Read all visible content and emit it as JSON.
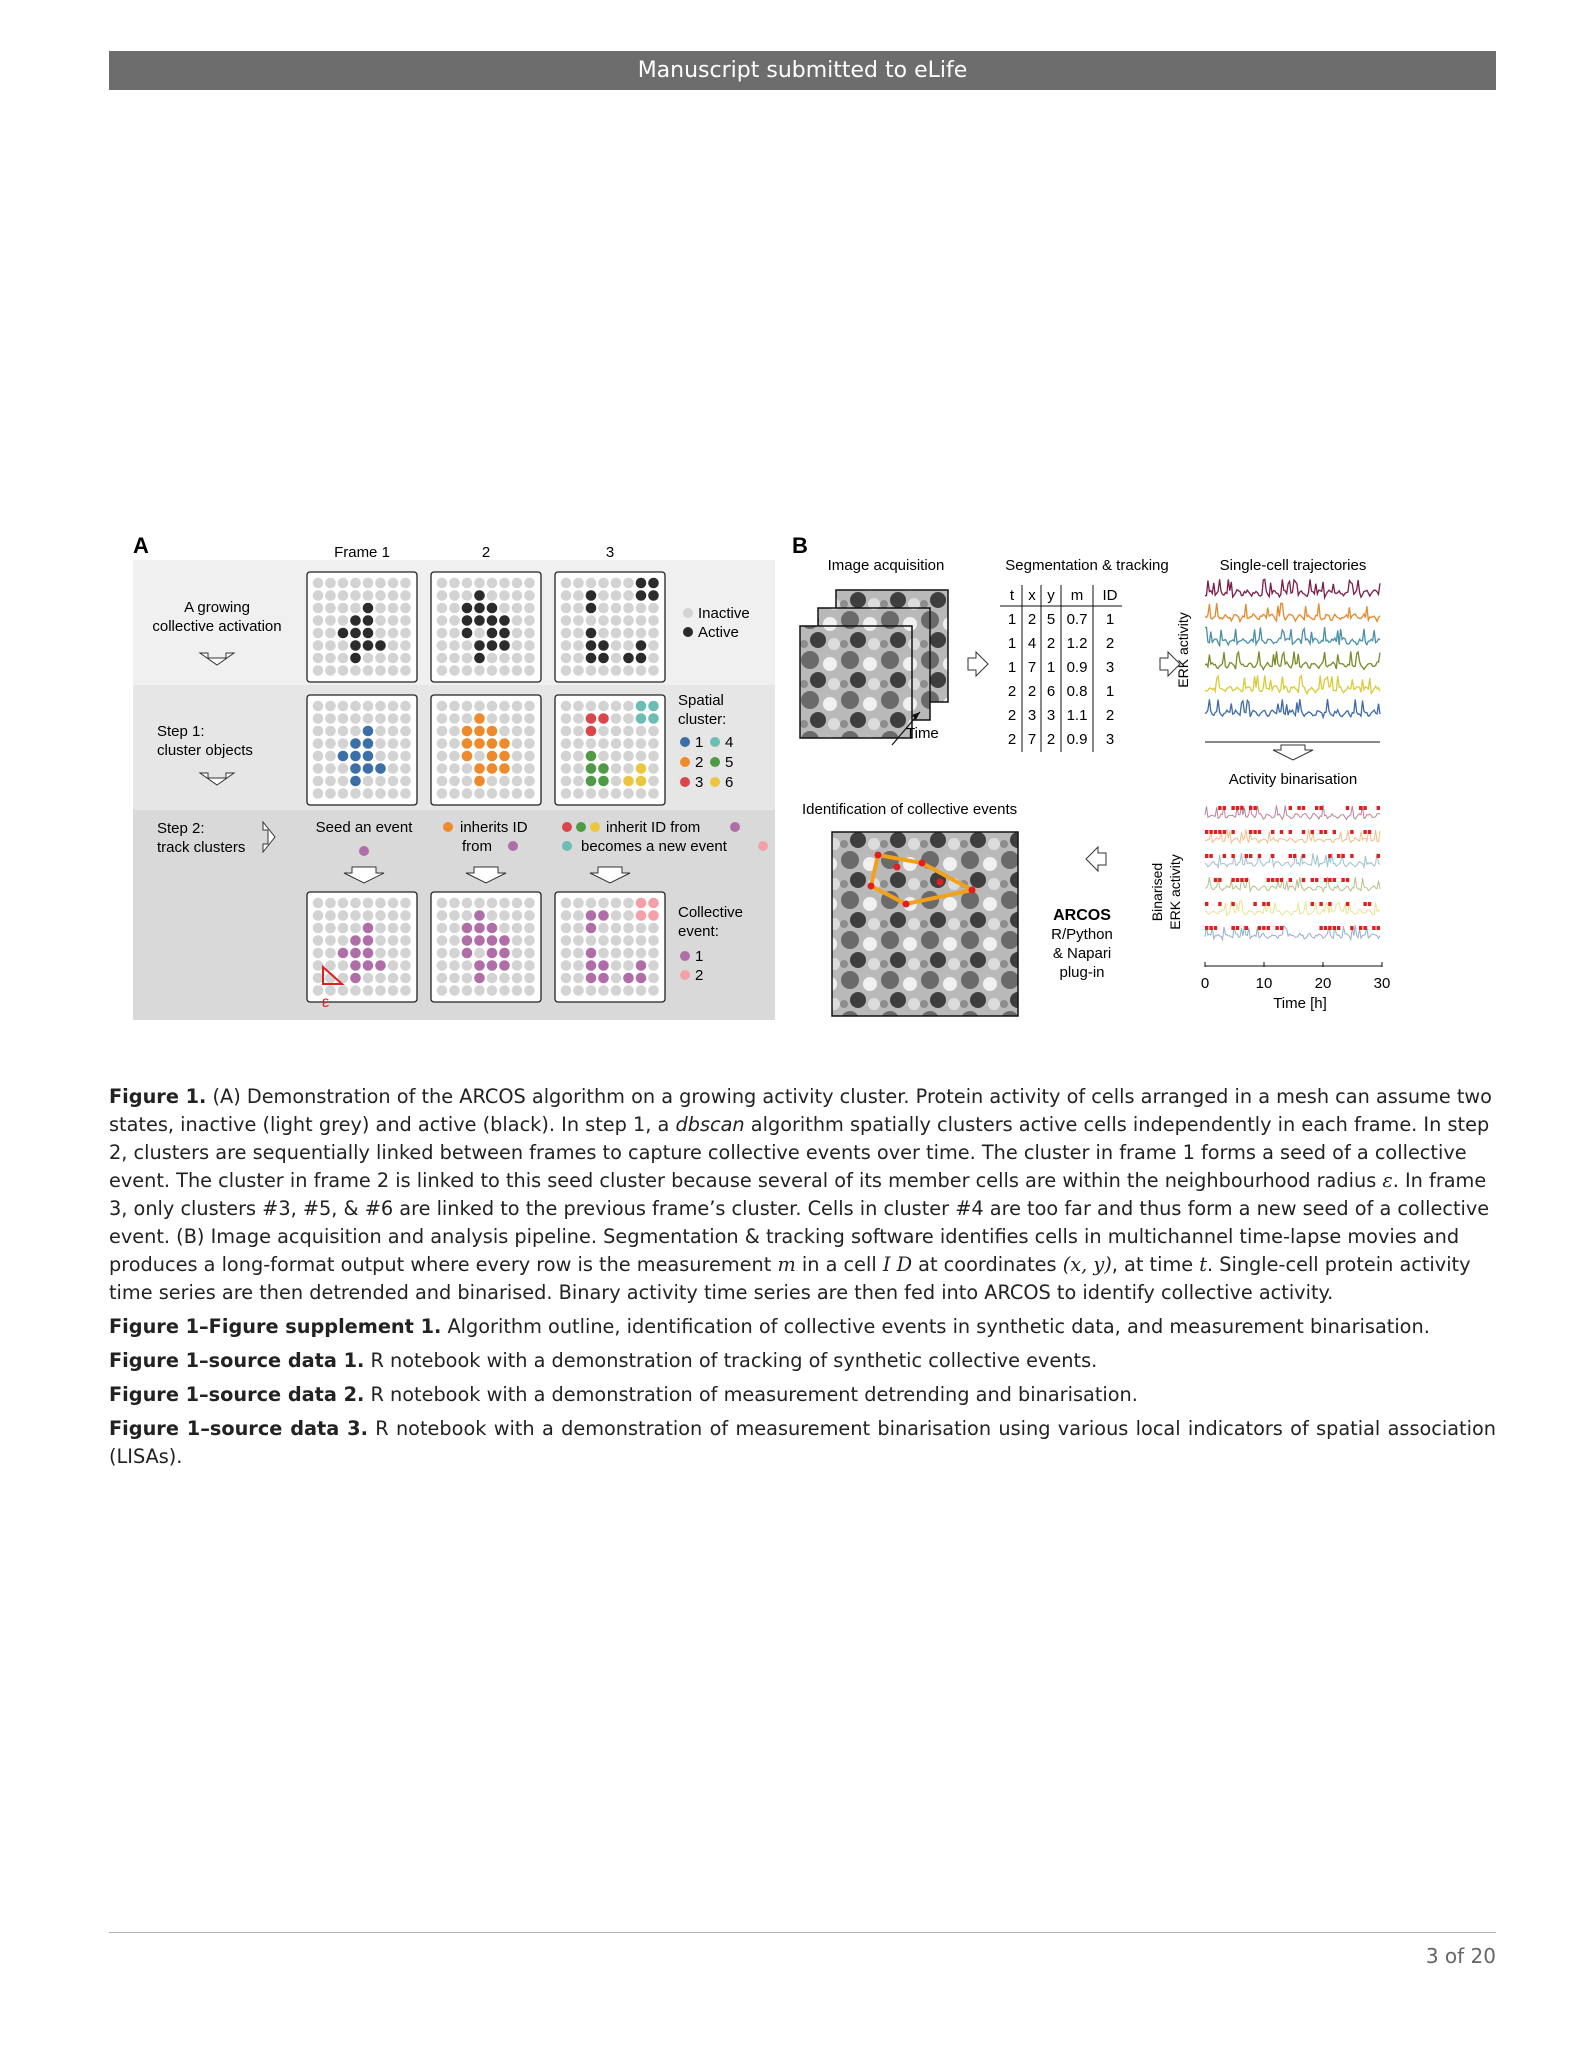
{
  "header": {
    "text": "Manuscript submitted to eLife"
  },
  "figure": {
    "panel_a": {
      "label": "A",
      "frame_titles": [
        "Frame 1",
        "2",
        "3"
      ],
      "row1_label": [
        "A growing",
        "collective activation"
      ],
      "legend_states": [
        "Inactive",
        "Active"
      ],
      "step1_label": [
        "Step 1:",
        "cluster objects"
      ],
      "spatial_cluster_title": [
        "Spatial",
        "cluster:"
      ],
      "cluster_ids": [
        "1",
        "4",
        "2",
        "5",
        "3",
        "6"
      ],
      "step2_label": [
        "Step 2:",
        "track clusters"
      ],
      "seed_text": "Seed an event",
      "inherits_text": [
        "inherits ID",
        "from"
      ],
      "inherit_from_text": "inherit ID from",
      "new_event_text": "becomes a new event",
      "collective_event_title": [
        "Collective",
        "event:"
      ],
      "event_ids": [
        "1",
        "2"
      ],
      "epsilon": "ε",
      "colors": {
        "inactive": "#d3d3d3",
        "active": "#2b2b2b",
        "c1": "#3c6ea8",
        "c2": "#ee8a2b",
        "c3": "#d9474c",
        "c4": "#6cbeb4",
        "c5": "#4f9a45",
        "c6": "#ecc63e",
        "e1": "#b06ea8",
        "e2": "#f4a0a8"
      }
    },
    "panel_b": {
      "label": "B",
      "image_acquisition": "Image acquisition",
      "time_label": "Time",
      "segmentation_title": "Segmentation & tracking",
      "table": {
        "headers": [
          "t",
          "x",
          "y",
          "m",
          "ID"
        ],
        "rows": [
          [
            "1",
            "2",
            "5",
            "0.7",
            "1"
          ],
          [
            "1",
            "4",
            "2",
            "1.2",
            "2"
          ],
          [
            "1",
            "7",
            "1",
            "0.9",
            "3"
          ],
          [
            "2",
            "2",
            "6",
            "0.8",
            "1"
          ],
          [
            "2",
            "3",
            "3",
            "1.1",
            "2"
          ],
          [
            "2",
            "7",
            "2",
            "0.9",
            "3"
          ]
        ]
      },
      "trajectories_title": "Single-cell trajectories",
      "erk_label": "ERK activity",
      "binarisation_title": "Activity binarisation",
      "binarised_label": [
        "Binarised",
        "ERK activity"
      ],
      "time_axis_label": "Time [h]",
      "time_ticks": [
        "0",
        "10",
        "20",
        "30"
      ],
      "identification_title": "Identification of collective events",
      "arcos_name": "ARCOS",
      "arcos_desc": [
        "R/Python",
        "& Napari",
        "plug-in"
      ],
      "trace_colors": [
        "#7b1d4a",
        "#e38a2c",
        "#4a8fa6",
        "#7b8b2a",
        "#d8cc3a",
        "#3e6aa6"
      ]
    }
  },
  "caption": {
    "fig1_label": "Figure 1.",
    "fig1_part1": " (A) Demonstration of the ARCOS algorithm on a growing activity cluster. Protein activity of cells arranged in a mesh can assume two states, inactive (light grey) and active (black). In step 1, a ",
    "fig1_italic": "dbscan",
    "fig1_part2": " algorithm spatially clusters active cells independently in each frame. In step 2, clusters are sequentially linked between frames to capture collective events over time. The cluster in frame 1 forms a seed of a collective event. The cluster in frame 2 is linked to this seed cluster because several of its member cells are within the neighbourhood radius ",
    "eps": "ε",
    "fig1_part3": ". In frame 3, only clusters #3, #5, & #6 are linked to the previous frame’s cluster. Cells in cluster #4 are too far and thus form a new seed of a collective event. (B) Image acquisition and analysis pipeline. Segmentation & tracking software identifies cells in multichannel time-lapse movies and produces a long-format output where every row is the measurement ",
    "m": "m",
    "fig1_part4": " in a cell ",
    "id": "I D",
    "fig1_part5": " at coordinates ",
    "xy": "(x, y)",
    "fig1_part6": ", at time ",
    "t": "t",
    "fig1_part7": ". Single-cell protein activity time series are then detrended and binarised. Binary activity time series are then fed into ARCOS to identify collective activity.",
    "supp_label": "Figure 1–Figure supplement 1.",
    "supp_text": " Algorithm outline, identification of collective events in synthetic data, and measurement binarisation.",
    "sd1_label": "Figure 1–source data 1.",
    "sd1_text": " R notebook with a demonstration of tracking of synthetic collective events.",
    "sd2_label": "Figure 1–source data 2.",
    "sd2_text": " R notebook with a demonstration of measurement detrending and binarisation.",
    "sd3_label": "Figure 1–source data 3.",
    "sd3_text": " R notebook with a demonstration of measurement binarisation using various local indicators of spatial association (LISAs)."
  },
  "footer": {
    "page": "3 of 20"
  }
}
